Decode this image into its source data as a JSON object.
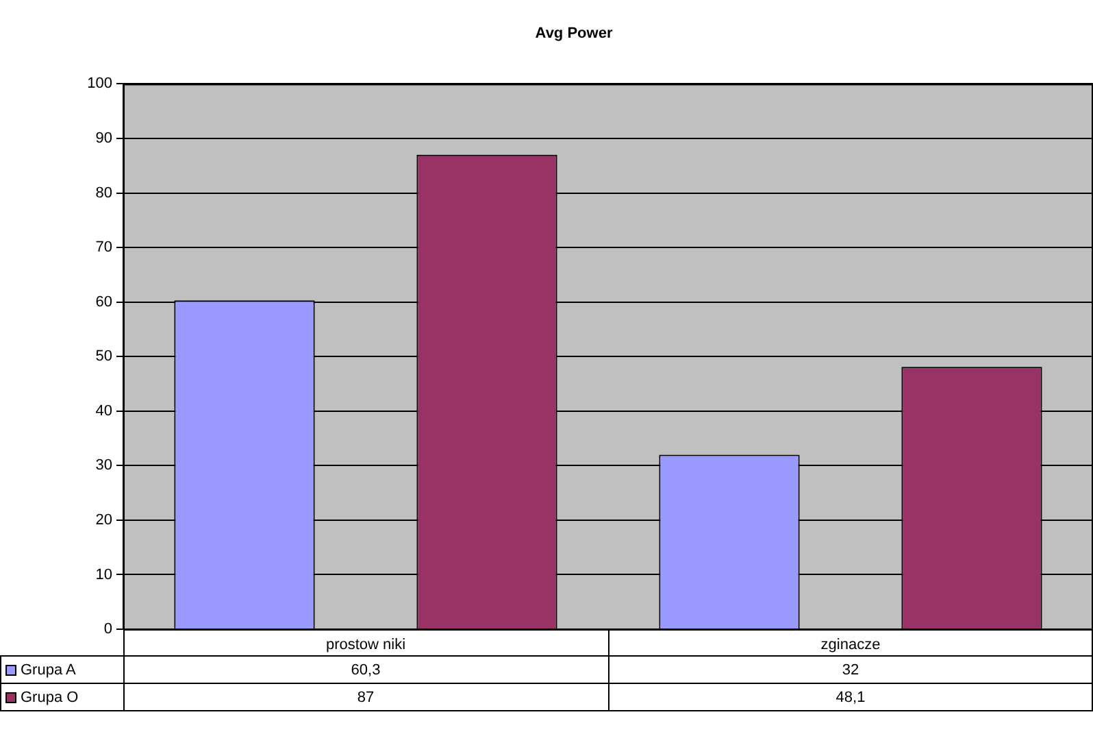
{
  "chart_data": {
    "type": "bar",
    "title": "Avg Power",
    "categories": [
      "prostow niki",
      "zginacze"
    ],
    "series": [
      {
        "name": "Grupa A",
        "color": "#9999ff",
        "values": [
          60.3,
          32
        ],
        "value_labels": [
          "60,3",
          "32"
        ]
      },
      {
        "name": "Grupa O",
        "color": "#993366",
        "values": [
          87,
          48.1
        ],
        "value_labels": [
          "87",
          "48,1"
        ]
      }
    ],
    "ylim": [
      0,
      100
    ],
    "yticks": [
      0,
      10,
      20,
      30,
      40,
      50,
      60,
      70,
      80,
      90,
      100
    ],
    "grid": "y",
    "legend": "bottom left"
  }
}
